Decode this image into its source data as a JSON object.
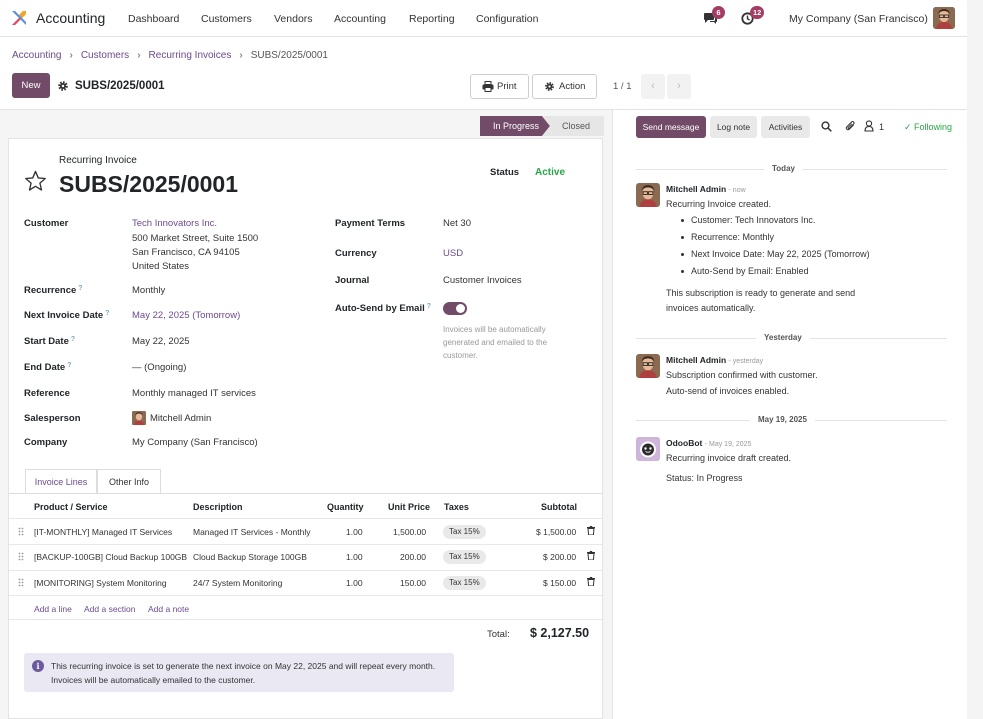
{
  "app": {
    "name": "Accounting",
    "company": "My Company (San Francisco)",
    "chat_count": "6",
    "activity_count": "12"
  },
  "nav": [
    "Dashboard",
    "Customers",
    "Vendors",
    "Accounting",
    "Reporting",
    "Configuration"
  ],
  "breadcrumb": [
    "Accounting",
    "Customers",
    "Recurring Invoices",
    "SUBS/2025/0001"
  ],
  "control": {
    "new_label": "New",
    "record": "SUBS/2025/0001",
    "print_label": "Print",
    "action_label": "Action",
    "pager": "1 / 1"
  },
  "statusbar": {
    "stages": [
      "In Progress",
      "Closed"
    ],
    "active": "In Progress"
  },
  "form": {
    "caption": "Recurring Invoice",
    "name": "SUBS/2025/0001",
    "status_label": "Status",
    "status_value": "Active",
    "left_fields": {
      "customer_label": "Customer",
      "customer_name": "Tech Innovators Inc.",
      "address": [
        "500 Market Street, Suite 1500",
        "San Francisco, CA 94105",
        "United States"
      ],
      "recurrence_label": "Recurrence",
      "recurrence": "Monthly",
      "next_date_label": "Next Invoice Date",
      "next_date": "May 22, 2025 (Tomorrow)",
      "start_label": "Start Date",
      "start": "May 22, 2025",
      "end_label": "End Date",
      "end": "— (Ongoing)",
      "reference_label": "Reference",
      "reference": "Monthly managed IT services",
      "salesperson_label": "Salesperson",
      "salesperson": "Mitchell Admin",
      "company_label": "Company",
      "company": "My Company (San Francisco)"
    },
    "right_fields": {
      "payment_terms_label": "Payment Terms",
      "payment_terms": "Net 30",
      "currency_label": "Currency",
      "currency": "USD",
      "journal_label": "Journal",
      "journal": "Customer Invoices",
      "autosend_label": "Auto-Send by Email",
      "autosend_enabled": true,
      "autosend_hint": "Invoices will be automatically generated and emailed to the customer."
    },
    "tabs": [
      "Invoice Lines",
      "Other Info"
    ],
    "lines": {
      "headers": [
        "Product / Service",
        "Description",
        "Quantity",
        "Unit Price",
        "Taxes",
        "Subtotal"
      ],
      "rows": [
        {
          "product": "[IT-MONTHLY] Managed IT Services",
          "description": "Managed IT Services - Monthly",
          "qty": "1.00",
          "price": "1,500.00",
          "tax": "Tax 15%",
          "subtotal": "$ 1,500.00"
        },
        {
          "product": "[BACKUP-100GB] Cloud Backup 100GB",
          "description": "Cloud Backup Storage 100GB",
          "qty": "1.00",
          "price": "200.00",
          "tax": "Tax 15%",
          "subtotal": "$ 200.00"
        },
        {
          "product": "[MONITORING] System Monitoring",
          "description": "24/7 System Monitoring",
          "qty": "1.00",
          "price": "150.00",
          "tax": "Tax 15%",
          "subtotal": "$ 150.00"
        }
      ],
      "add_line": "Add a line",
      "add_section": "Add a section",
      "add_note": "Add a note"
    },
    "total_label": "Total:",
    "total_value": "$ 2,127.50",
    "info": "This recurring invoice is set to generate the next invoice on May 22, 2025 and will repeat every month. Invoices will be automatically emailed to the customer."
  },
  "chatter": {
    "send_message": "Send message",
    "log_note": "Log note",
    "activities": "Activities",
    "followers_count": "1",
    "following": "Following",
    "groups": [
      {
        "day": "Today",
        "author": "Mitchell Admin",
        "time": "now",
        "lines": [
          "Recurring Invoice created."
        ],
        "bullets": [
          "Customer: Tech Innovators Inc.",
          "Recurrence: Monthly",
          "Next Invoice Date: May 22, 2025 (Tomorrow)",
          "Auto-Send by Email: Enabled"
        ],
        "after": [
          "This subscription is ready to generate and send",
          "invoices automatically."
        ]
      },
      {
        "day": "Yesterday",
        "author": "Mitchell Admin",
        "time": "yesterday",
        "lines": [
          "Subscription confirmed with customer.",
          "Auto-send of invoices enabled."
        ]
      },
      {
        "day": "May 19, 2025",
        "author": "OdooBot",
        "time": "May 19, 2025",
        "lines": [
          "Recurring invoice draft created.",
          "Status: In Progress"
        ]
      }
    ]
  },
  "colors": {
    "brand": "#714b67",
    "link": "#6c4a8e",
    "success": "#28a745",
    "badge": "#a43c63"
  }
}
